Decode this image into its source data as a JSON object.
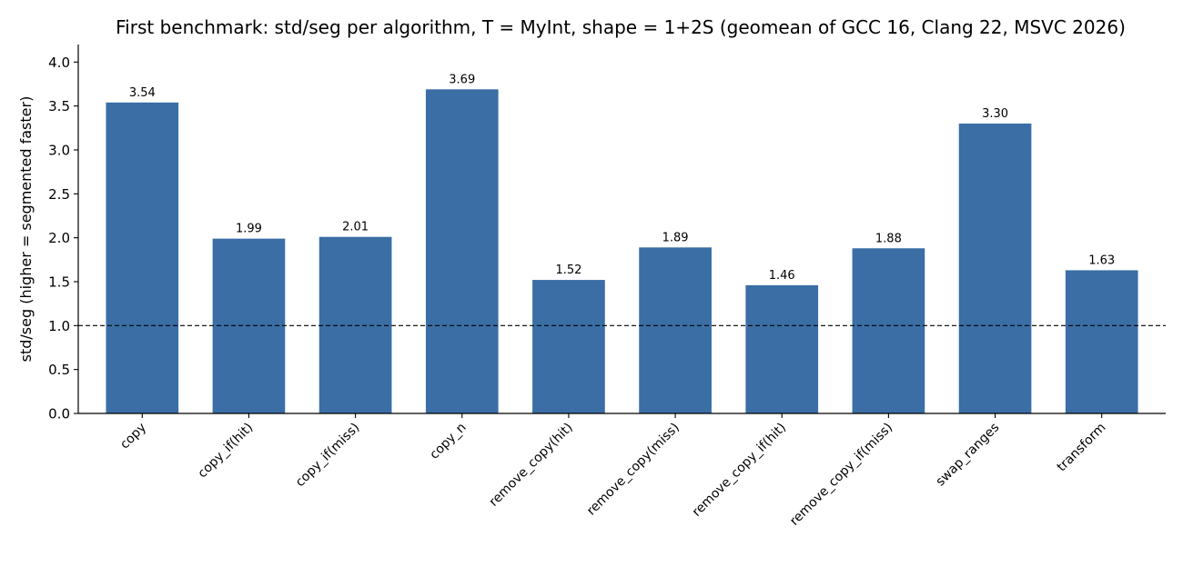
{
  "chart_data": {
    "type": "bar",
    "title": "First benchmark: std/seg per algorithm, T = MyInt, shape = 1+2S (geomean of GCC 16, Clang 22, MSVC 2026)",
    "xlabel": "",
    "ylabel": "std/seg  (higher = segmented faster)",
    "categories": [
      "copy",
      "copy_if(hit)",
      "copy_if(miss)",
      "copy_n",
      "remove_copy(hit)",
      "remove_copy(miss)",
      "remove_copy_if(hit)",
      "remove_copy_if(miss)",
      "swap_ranges",
      "transform"
    ],
    "values": [
      3.54,
      1.99,
      2.01,
      3.69,
      1.52,
      1.89,
      1.46,
      1.88,
      3.3,
      1.63
    ],
    "value_labels": [
      "3.54",
      "1.99",
      "2.01",
      "3.69",
      "1.52",
      "1.89",
      "1.46",
      "1.88",
      "3.30",
      "1.63"
    ],
    "ylim": [
      0,
      4.2
    ],
    "yticks": [
      0.0,
      0.5,
      1.0,
      1.5,
      2.0,
      2.5,
      3.0,
      3.5,
      4.0
    ],
    "ytick_labels": [
      "0.0",
      "0.5",
      "1.0",
      "1.5",
      "2.0",
      "2.5",
      "3.0",
      "3.5",
      "4.0"
    ],
    "reference_line": 1.0,
    "grid": false,
    "bar_color": "#3a6ea5",
    "reference_line_color": "#000000",
    "xtick_rotation": 45
  }
}
